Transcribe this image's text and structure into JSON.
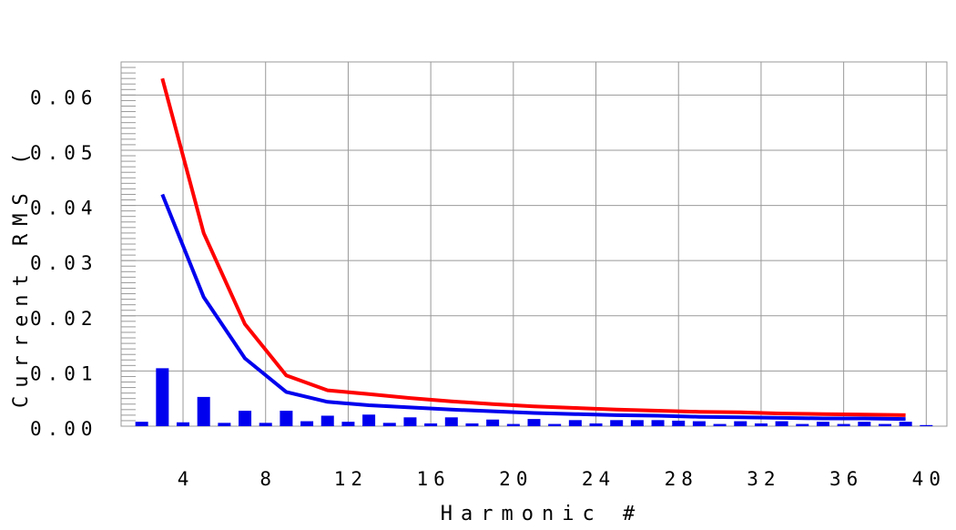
{
  "chart_data": {
    "type": "bar",
    "title": "",
    "xlabel": "Harmonic #",
    "ylabel": "Current RMS (",
    "xlim": [
      1,
      41
    ],
    "ylim": [
      0,
      0.066
    ],
    "x_ticks": [
      "4",
      "8",
      "12",
      "16",
      "20",
      "24",
      "28",
      "32",
      "36",
      "40"
    ],
    "y_ticks": [
      "0.00",
      "0.01",
      "0.02",
      "0.03",
      "0.04",
      "0.05",
      "0.06"
    ],
    "grid": true,
    "bars": {
      "color": "#0000ee",
      "x": [
        2,
        3,
        4,
        5,
        6,
        7,
        8,
        9,
        10,
        11,
        12,
        13,
        14,
        15,
        16,
        17,
        18,
        19,
        20,
        21,
        22,
        23,
        24,
        25,
        26,
        27,
        28,
        29,
        30,
        31,
        32,
        33,
        34,
        35,
        36,
        37,
        38,
        39,
        40
      ],
      "values": [
        0.0008,
        0.0105,
        0.0007,
        0.0053,
        0.0006,
        0.0028,
        0.0006,
        0.0028,
        0.0009,
        0.0019,
        0.0008,
        0.0021,
        0.0006,
        0.0016,
        0.0005,
        0.0016,
        0.0005,
        0.0012,
        0.0004,
        0.0013,
        0.0004,
        0.0011,
        0.0005,
        0.0011,
        0.0011,
        0.0011,
        0.001,
        0.0009,
        0.0004,
        0.0009,
        0.0005,
        0.0009,
        0.0004,
        0.0008,
        0.0004,
        0.0008,
        0.0004,
        0.0008,
        0.0002
      ]
    },
    "series": [
      {
        "color": "#ff0000",
        "x": [
          3,
          5,
          7,
          9,
          11,
          13,
          15,
          17,
          19,
          21,
          23,
          25,
          27,
          29,
          31,
          33,
          35,
          37,
          39
        ],
        "values": [
          0.063,
          0.035,
          0.0185,
          0.0092,
          0.0065,
          0.0058,
          0.0051,
          0.0045,
          0.004,
          0.0036,
          0.0033,
          0.003,
          0.0028,
          0.0026,
          0.0025,
          0.0023,
          0.0022,
          0.0021,
          0.002
        ]
      },
      {
        "color": "#0000ee",
        "x": [
          3,
          5,
          7,
          9,
          11,
          13,
          15,
          17,
          19,
          21,
          23,
          25,
          27,
          29,
          31,
          33,
          35,
          37,
          39
        ],
        "values": [
          0.042,
          0.0234,
          0.0123,
          0.0062,
          0.0044,
          0.0038,
          0.0034,
          0.003,
          0.0027,
          0.0024,
          0.0022,
          0.002,
          0.0019,
          0.0017,
          0.0016,
          0.0015,
          0.0014,
          0.0014,
          0.0013
        ]
      }
    ]
  }
}
